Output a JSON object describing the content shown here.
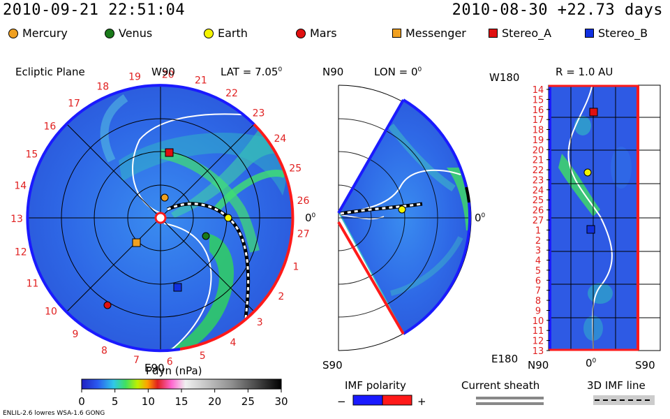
{
  "header": {
    "sim_time": "2010-09-21 22:51:04",
    "ref_time": "2010-08-30 +22.73 days"
  },
  "legend": [
    {
      "label": "Mercury",
      "color": "#f0a020",
      "shape": "circle"
    },
    {
      "label": "Venus",
      "color": "#1a7a1a",
      "shape": "circle"
    },
    {
      "label": "Earth",
      "color": "#f4f400",
      "shape": "circle"
    },
    {
      "label": "Mars",
      "color": "#e01010",
      "shape": "circle"
    },
    {
      "label": "Messenger",
      "color": "#f0a020",
      "shape": "square"
    },
    {
      "label": "Stereo_A",
      "color": "#e01010",
      "shape": "square"
    },
    {
      "label": "Stereo_B",
      "color": "#1030e0",
      "shape": "square"
    }
  ],
  "panels": {
    "ecliptic": {
      "title": "Ecliptic Plane",
      "top_label": "W90",
      "lat_label": "LAT = 7.05",
      "deg": "0",
      "bottom_label": "E90",
      "right_label": "0",
      "rotations": [
        "20",
        "21",
        "22",
        "23",
        "24",
        "25",
        "26",
        "27",
        "1",
        "2",
        "3",
        "4",
        "5",
        "6",
        "7",
        "8",
        "9",
        "10",
        "11",
        "12",
        "13",
        "14",
        "15",
        "16",
        "17",
        "18",
        "19"
      ]
    },
    "meridional": {
      "top_label": "N90",
      "lon_label": "LON = 0",
      "deg": "0",
      "bottom_label": "S90",
      "right_label": "0"
    },
    "radial": {
      "r_label": "R = 1.0 AU",
      "top_label": "W180",
      "bottom_label": "E180",
      "x_left": "N90",
      "x_mid": "0",
      "x_right": "S90",
      "rotations": [
        "14",
        "15",
        "16",
        "17",
        "18",
        "19",
        "20",
        "21",
        "22",
        "23",
        "24",
        "25",
        "26",
        "27",
        "1",
        "2",
        "3",
        "4",
        "5",
        "6",
        "7",
        "8",
        "9",
        "10",
        "11",
        "12",
        "13"
      ]
    }
  },
  "colorbar": {
    "title": "Pdyn (nPa)",
    "ticks": [
      "0",
      "5",
      "10",
      "15",
      "20",
      "25",
      "30"
    ]
  },
  "imf": {
    "title": "IMF polarity",
    "minus": "−",
    "plus": "+",
    "neg_color": "#1a1aff",
    "pos_color": "#ff1a1a"
  },
  "current_sheath": {
    "title": "Current sheath"
  },
  "imf_line": {
    "title": "3D IMF line"
  },
  "footer": {
    "model": "ENLIL-2.6 lowres WSA-1.6 GONG"
  }
}
